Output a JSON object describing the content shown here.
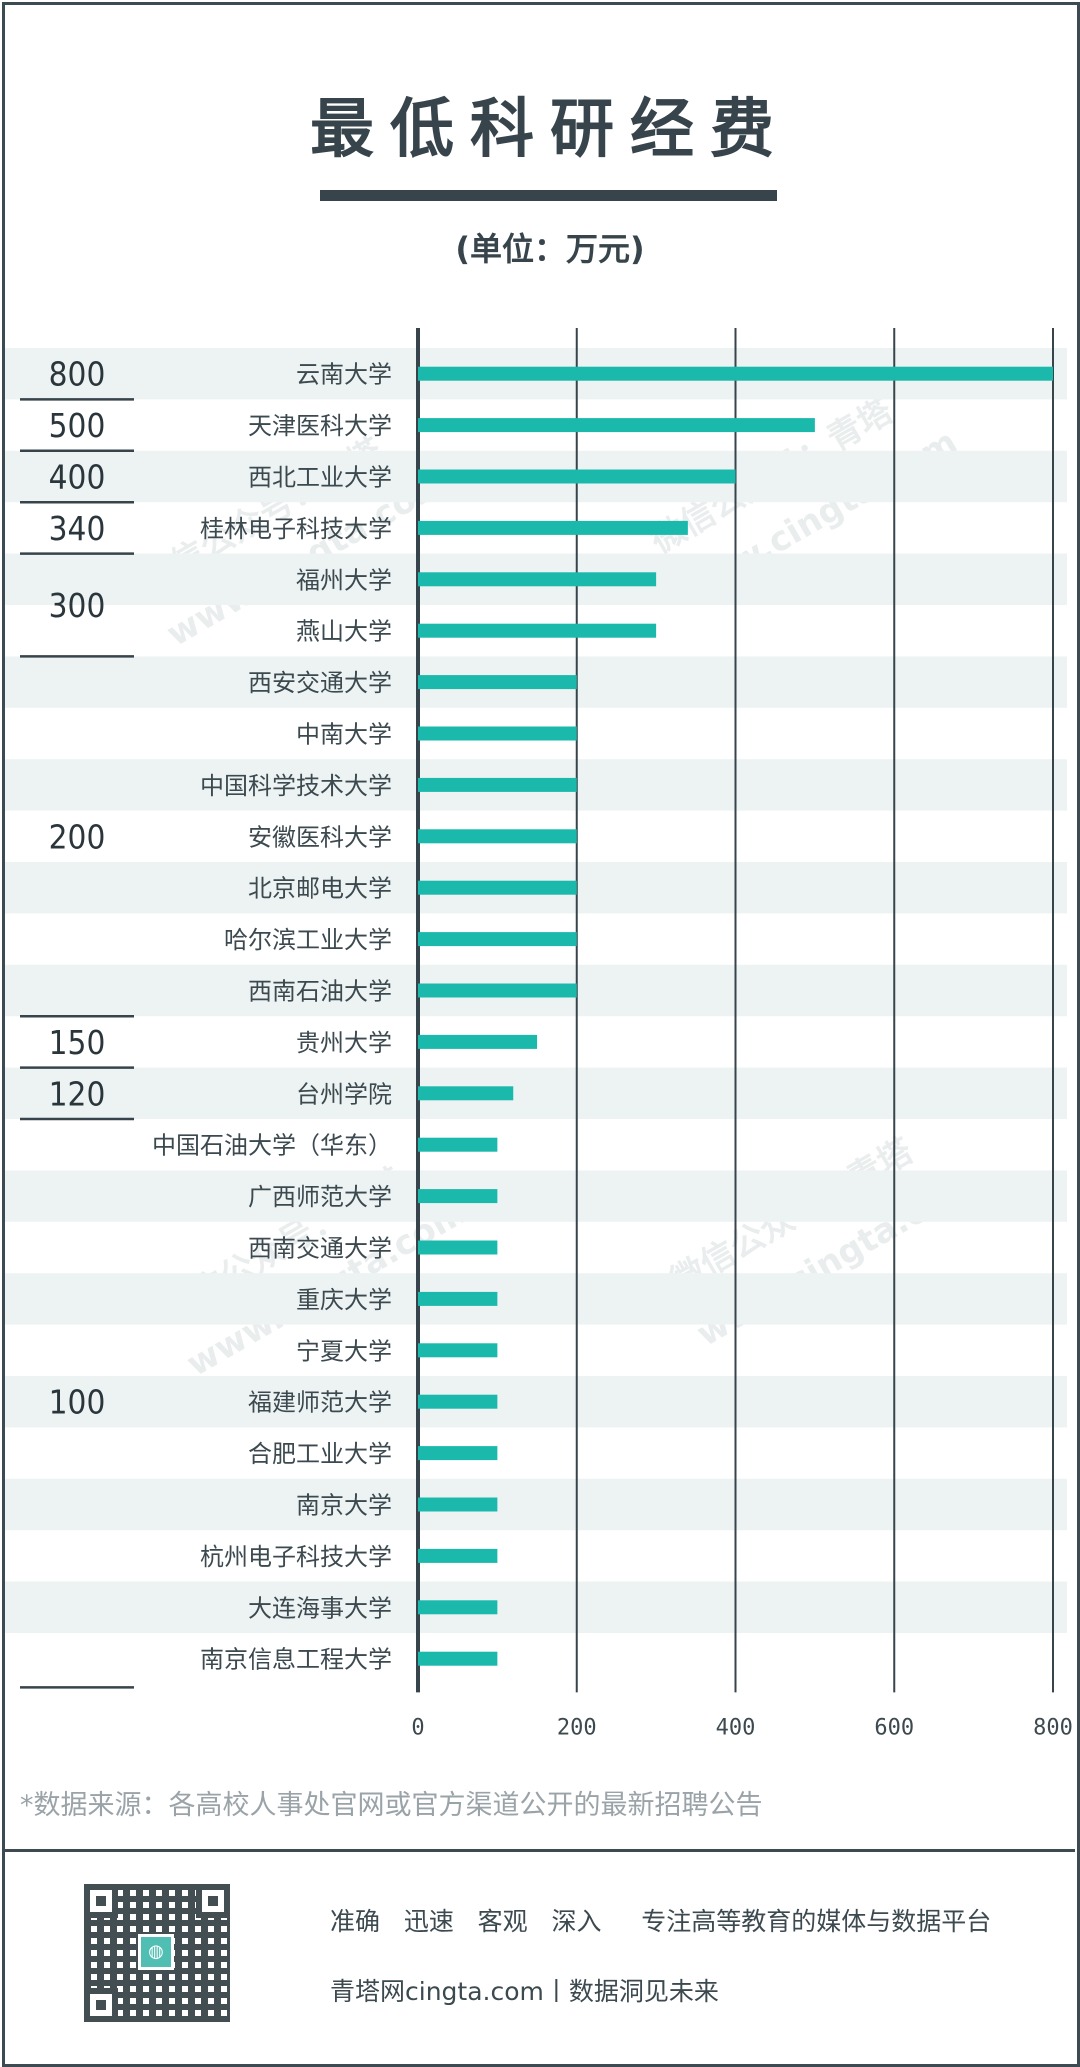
{
  "title": "最低科研经费",
  "unit": "(单位：万元)",
  "source": "*数据来源：各高校人事处官网或官方渠道公开的最新招聘公告",
  "footer": {
    "slogan": "准确   迅速   客观   深入     专注高等教育的媒体与数据平台",
    "tagline": "青塔网cingta.com丨数据洞见未来"
  },
  "watermark": {
    "line1": "微信公众号：青塔",
    "line2": "www.cingta.com"
  },
  "colors": {
    "bar": "#1ab9ac",
    "stripe": "#edf3f3",
    "axis": "#37444b",
    "text": "#3c4a50"
  },
  "chart_data": {
    "type": "bar",
    "orientation": "horizontal",
    "categories": [
      "云南大学",
      "天津医科大学",
      "西北工业大学",
      "桂林电子科技大学",
      "福州大学",
      "燕山大学",
      "西安交通大学",
      "中南大学",
      "中国科学技术大学",
      "安徽医科大学",
      "北京邮电大学",
      "哈尔滨工业大学",
      "西南石油大学",
      "贵州大学",
      "台州学院",
      "中国石油大学（华东）",
      "广西师范大学",
      "西南交通大学",
      "重庆大学",
      "宁夏大学",
      "福建师范大学",
      "合肥工业大学",
      "南京大学",
      "杭州电子科技大学",
      "大连海事大学",
      "南京信息工程大学"
    ],
    "values": [
      800,
      500,
      400,
      340,
      300,
      300,
      200,
      200,
      200,
      200,
      200,
      200,
      200,
      150,
      120,
      100,
      100,
      100,
      100,
      100,
      100,
      100,
      100,
      100,
      100,
      100
    ],
    "xlim": [
      0,
      800
    ],
    "xticks": [
      "0",
      "200",
      "400",
      "600",
      "800"
    ],
    "grid": true,
    "value_groups": [
      {
        "label": "800",
        "from": 0,
        "to": 0
      },
      {
        "label": "500",
        "from": 1,
        "to": 1
      },
      {
        "label": "400",
        "from": 2,
        "to": 2
      },
      {
        "label": "340",
        "from": 3,
        "to": 3
      },
      {
        "label": "300",
        "from": 4,
        "to": 5
      },
      {
        "label": "200",
        "from": 6,
        "to": 12
      },
      {
        "label": "150",
        "from": 13,
        "to": 13
      },
      {
        "label": "120",
        "from": 14,
        "to": 14
      },
      {
        "label": "100",
        "from": 15,
        "to": 25
      }
    ]
  }
}
